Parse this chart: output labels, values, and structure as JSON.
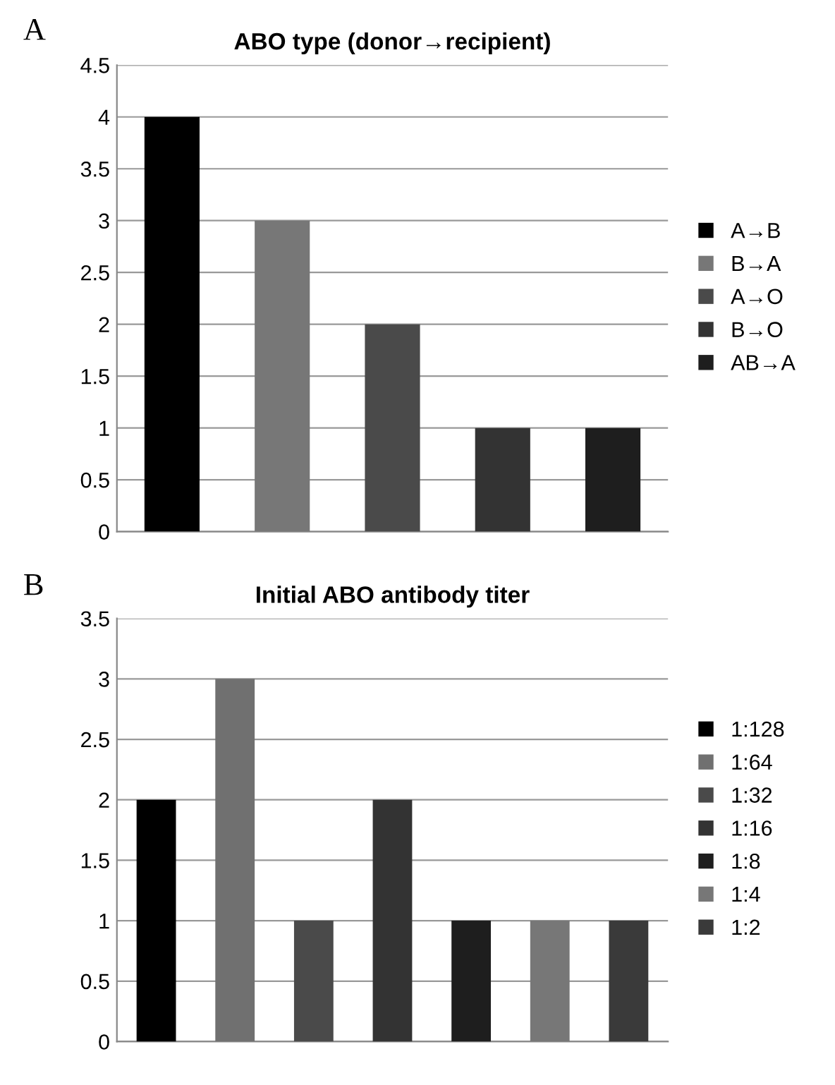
{
  "chart_data": [
    {
      "type": "bar",
      "title": "ABO type (donor→recipient)",
      "annotations": [
        "A"
      ],
      "categories": [
        null
      ],
      "series": [
        {
          "name": "A→B",
          "color": "#000000",
          "values": [
            4
          ]
        },
        {
          "name": "B→A",
          "color": "#777777",
          "values": [
            3
          ]
        },
        {
          "name": "A→O",
          "color": "#4a4a4a",
          "values": [
            2
          ]
        },
        {
          "name": "B→O",
          "color": "#333333",
          "values": [
            1
          ]
        },
        {
          "name": "AB→A",
          "color": "#1e1e1e",
          "values": [
            1
          ]
        }
      ],
      "ylim": [
        0,
        4.5
      ],
      "yticks": [
        0,
        0.5,
        1,
        1.5,
        2,
        2.5,
        3,
        3.5,
        4,
        4.5
      ],
      "grid": "y",
      "legend": "right"
    },
    {
      "type": "bar",
      "title": "Initial ABO antibody titer",
      "annotations": [
        "B"
      ],
      "categories": [
        null
      ],
      "series": [
        {
          "name": "1:128",
          "color": "#000000",
          "values": [
            2
          ]
        },
        {
          "name": "1:64",
          "color": "#707070",
          "values": [
            3
          ]
        },
        {
          "name": "1:32",
          "color": "#4a4a4a",
          "values": [
            1
          ]
        },
        {
          "name": "1:16",
          "color": "#333333",
          "values": [
            2
          ]
        },
        {
          "name": "1:8",
          "color": "#1e1e1e",
          "values": [
            1
          ]
        },
        {
          "name": "1:4",
          "color": "#777777",
          "values": [
            1
          ]
        },
        {
          "name": "1:2",
          "color": "#3a3a3a",
          "values": [
            1
          ]
        }
      ],
      "ylim": [
        0,
        3.5
      ],
      "yticks": [
        0,
        0.5,
        1,
        1.5,
        2,
        2.5,
        3,
        3.5
      ],
      "grid": "y",
      "legend": "right"
    }
  ]
}
